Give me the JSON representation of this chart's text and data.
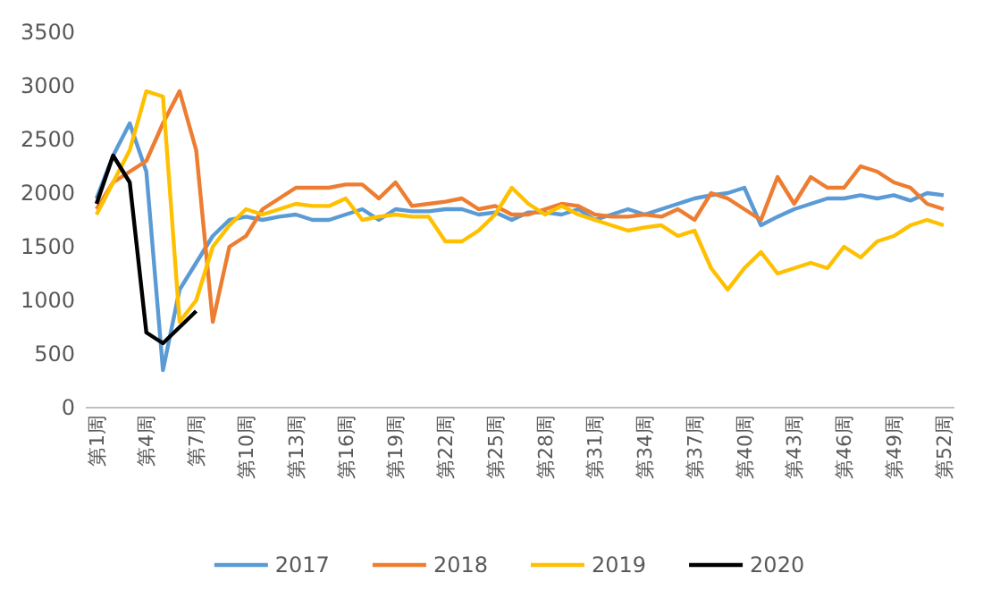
{
  "chart_data": {
    "type": "line",
    "categories": [
      "第1周",
      null,
      null,
      "第4周",
      null,
      null,
      "第7周",
      null,
      null,
      "第10周",
      null,
      null,
      "第13周",
      null,
      null,
      "第16周",
      null,
      null,
      "第19周",
      null,
      null,
      "第22周",
      null,
      null,
      "第25周",
      null,
      null,
      "第28周",
      null,
      null,
      "第31周",
      null,
      null,
      "第34周",
      null,
      null,
      "第37周",
      null,
      null,
      "第40周",
      null,
      null,
      "第43周",
      null,
      null,
      "第46周",
      null,
      null,
      "第49周",
      null,
      null,
      "第52周"
    ],
    "ylim": [
      0,
      3500
    ],
    "yticks": [
      0,
      500,
      1000,
      1500,
      2000,
      2500,
      3000,
      3500
    ],
    "grid": false,
    "legend": "bottom",
    "series": [
      {
        "name": "2017",
        "color": "#5b9bd5",
        "values": [
          1950,
          2350,
          2650,
          2200,
          350,
          1100,
          1350,
          1600,
          1750,
          1780,
          1750,
          1780,
          1800,
          1750,
          1750,
          1800,
          1850,
          1750,
          1850,
          1830,
          1830,
          1850,
          1850,
          1800,
          1820,
          1750,
          1820,
          1820,
          1800,
          1850,
          1750,
          1800,
          1850,
          1800,
          1850,
          1900,
          1950,
          1980,
          2000,
          2050,
          1700,
          1780,
          1850,
          1900,
          1950,
          1950,
          1980,
          1950,
          1980,
          1930,
          2000,
          1980
        ]
      },
      {
        "name": "2018",
        "color": "#ed7d31",
        "values": [
          1850,
          2100,
          2200,
          2300,
          2650,
          2950,
          2400,
          800,
          1500,
          1600,
          1850,
          1950,
          2050,
          2050,
          2050,
          2080,
          2080,
          1950,
          2100,
          1880,
          1900,
          1920,
          1950,
          1850,
          1880,
          1800,
          1800,
          1850,
          1900,
          1880,
          1800,
          1780,
          1780,
          1800,
          1780,
          1850,
          1750,
          2000,
          1950,
          1850,
          1750,
          2150,
          1900,
          2150,
          2050,
          2050,
          2250,
          2200,
          2100,
          2050,
          1900,
          1850
        ]
      },
      {
        "name": "2019",
        "color": "#ffc000",
        "values": [
          1800,
          2100,
          2400,
          2950,
          2900,
          800,
          1000,
          1500,
          1700,
          1850,
          1800,
          1850,
          1900,
          1880,
          1880,
          1950,
          1750,
          1780,
          1800,
          1780,
          1780,
          1550,
          1550,
          1650,
          1800,
          2050,
          1900,
          1800,
          1880,
          1800,
          1750,
          1700,
          1650,
          1680,
          1700,
          1600,
          1650,
          1300,
          1100,
          1300,
          1450,
          1250,
          1300,
          1350,
          1300,
          1500,
          1400,
          1550,
          1600,
          1700,
          1750,
          1700
        ]
      },
      {
        "name": "2020",
        "color": "#000000",
        "values": [
          1900,
          2350,
          2100,
          700,
          600,
          750,
          900,
          null,
          null,
          null,
          null,
          null,
          null,
          null,
          null,
          null,
          null,
          null,
          null,
          null,
          null,
          null,
          null,
          null,
          null,
          null,
          null,
          null,
          null,
          null,
          null,
          null,
          null,
          null,
          null,
          null,
          null,
          null,
          null,
          null,
          null,
          null,
          null,
          null,
          null,
          null,
          null,
          null,
          null,
          null,
          null,
          null
        ]
      }
    ]
  }
}
